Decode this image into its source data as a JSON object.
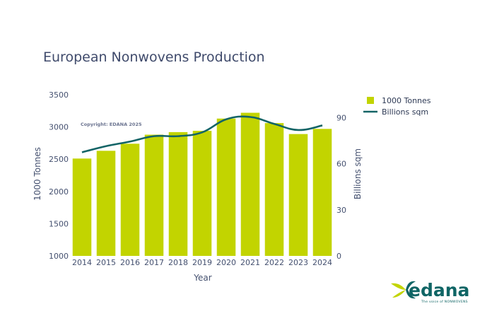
{
  "chart_data": {
    "type": "bar",
    "title": "European Nonwovens Production",
    "xlabel": "Year",
    "ylabel": "1000 Tonnes",
    "y2label": "Billions sqm",
    "categories": [
      "2014",
      "2015",
      "2016",
      "2017",
      "2018",
      "2019",
      "2020",
      "2021",
      "2022",
      "2023",
      "2024"
    ],
    "series": [
      {
        "name": "1000 Tonnes",
        "type": "bar",
        "axis": "left",
        "values": [
          2510,
          2630,
          2740,
          2880,
          2920,
          2940,
          3130,
          3220,
          3060,
          2890,
          2970
        ]
      },
      {
        "name": "Billions sqm",
        "type": "line",
        "axis": "right",
        "values": [
          67.5,
          71.5,
          74.5,
          78,
          78,
          80.5,
          89,
          90.5,
          86,
          82,
          85
        ]
      }
    ],
    "ylim": [
      1000,
      3500
    ],
    "yticks": [
      1000,
      1500,
      2000,
      2500,
      3000,
      3500
    ],
    "y2lim": [
      0,
      105
    ],
    "y2ticks": [
      0,
      30,
      60,
      90
    ],
    "grid": false,
    "legend_position": "top-right",
    "colors": {
      "bar": "#c2d400",
      "line": "#136466",
      "text": "#44506f",
      "title": "#3f4a6b"
    }
  },
  "copyright": "Copyright: EDANA 2025",
  "logo": {
    "word": "edana",
    "tagline": "The voice of NONWOVENS"
  }
}
